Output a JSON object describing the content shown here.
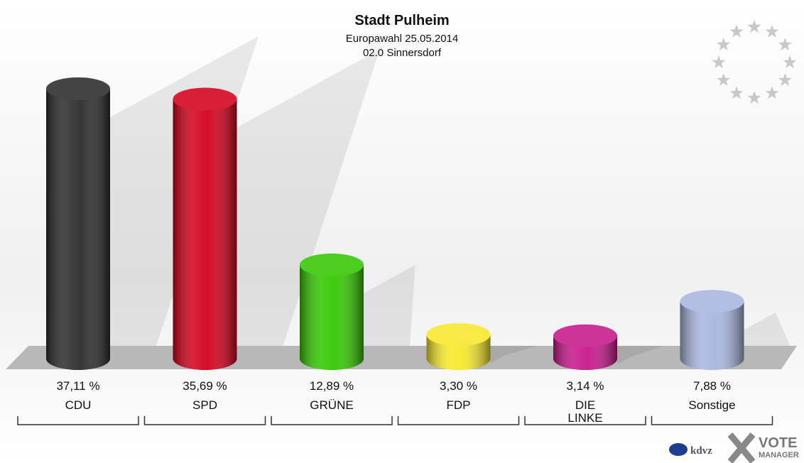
{
  "chart_data": {
    "type": "bar",
    "title": "Stadt Pulheim",
    "subtitle": "Europawahl 25.05.2014",
    "subtitle2": "02.0 Sinnersdorf",
    "categories": [
      "CDU",
      "SPD",
      "GRÜNE",
      "FDP",
      "DIE\nLINKE",
      "Sonstige"
    ],
    "values": [
      37.11,
      35.69,
      12.89,
      3.3,
      3.14,
      7.88
    ],
    "value_labels": [
      "37,11 %",
      "35,69 %",
      "12,89 %",
      "3,30 %",
      "3,14 %",
      "7,88 %"
    ],
    "colors": [
      "#2b2b2b",
      "#d4001c",
      "#33c800",
      "#f7e82a",
      "#c8178c",
      "#a8b6e0"
    ]
  },
  "logo": [
    "kdvz",
    "VOTE",
    "MANAGER"
  ]
}
